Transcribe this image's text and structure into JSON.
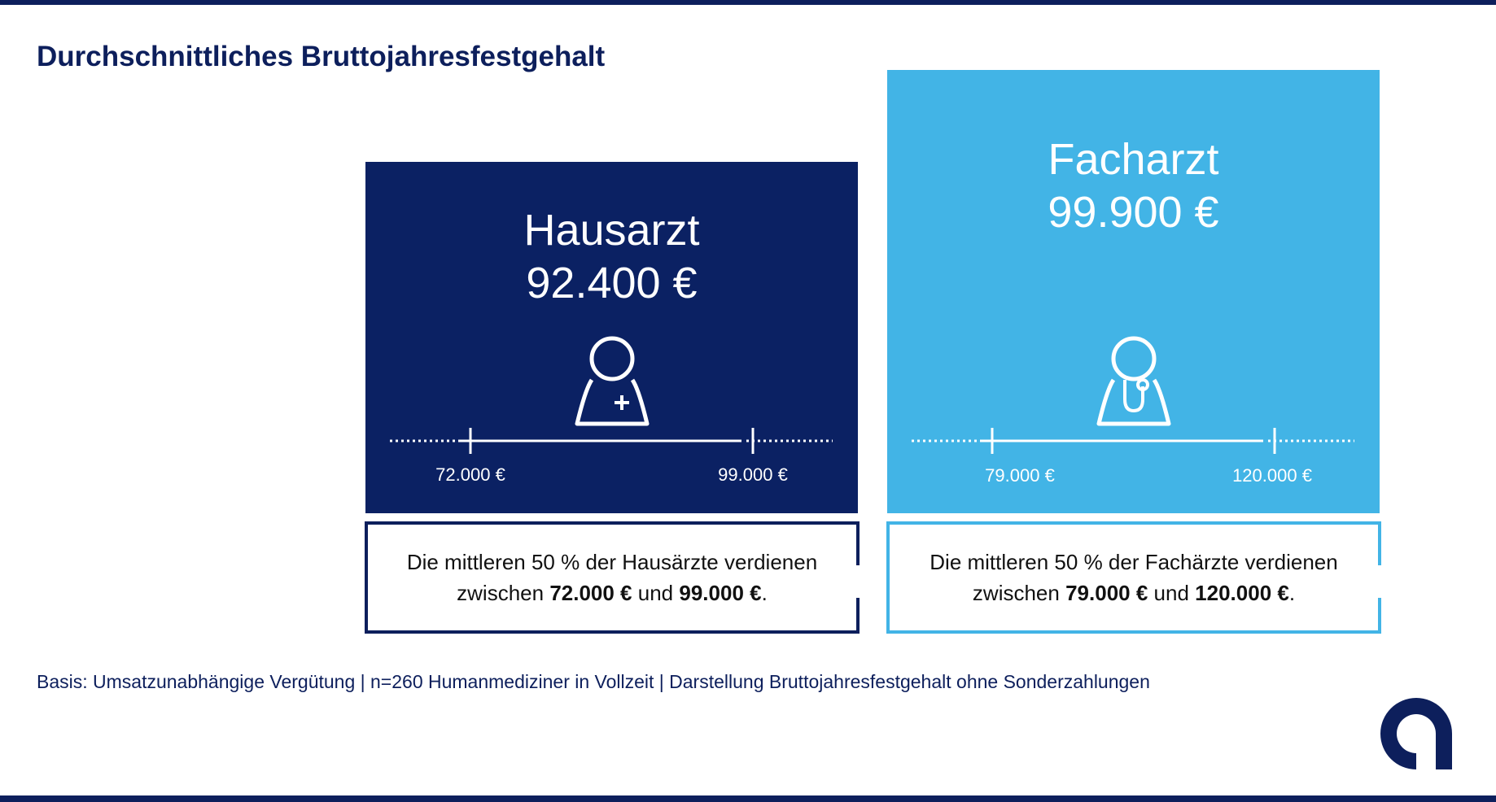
{
  "title": "Durchschnittliches Bruttojahresfestgehalt",
  "footnote": "Basis: Umsatzunabhängige Vergütung | n=260 Humanmediziner in Vollzeit | Darstellung Bruttojahresfestgehalt ohne Sonderzahlungen",
  "colors": {
    "navy": "#0d1f5c",
    "hausarzt_card": "#0b2163",
    "facharzt_card": "#42b4e6",
    "note_text": "#111111"
  },
  "hausarzt": {
    "name": "Hausarzt",
    "value": "92.400 €",
    "icon": "doctor-cross-icon",
    "range_low": "72.000 €",
    "range_high": "99.000 €",
    "note": {
      "line1": "Die mittleren 50 % der Hausärzte verdienen",
      "prefix": "zwischen",
      "low": "72.000 €",
      "and": "und",
      "high": "99.000 €",
      "end": "."
    }
  },
  "facharzt": {
    "name": "Facharzt",
    "value": "99.900 €",
    "icon": "doctor-stethoscope-icon",
    "range_low": "79.000 €",
    "range_high": "120.000 €",
    "note": {
      "line1": "Die mittleren 50 % der Fachärzte verdienen",
      "prefix": "zwischen",
      "low": "79.000 €",
      "and": "und",
      "high": "120.000 €",
      "end": "."
    }
  },
  "chart_data": {
    "type": "bar",
    "title": "Durchschnittliches Bruttojahresfestgehalt",
    "unit": "€",
    "categories": [
      "Hausarzt",
      "Facharzt"
    ],
    "values": [
      92400,
      99900
    ],
    "interquartile_ranges": [
      [
        72000,
        99000
      ],
      [
        79000,
        120000
      ]
    ]
  }
}
